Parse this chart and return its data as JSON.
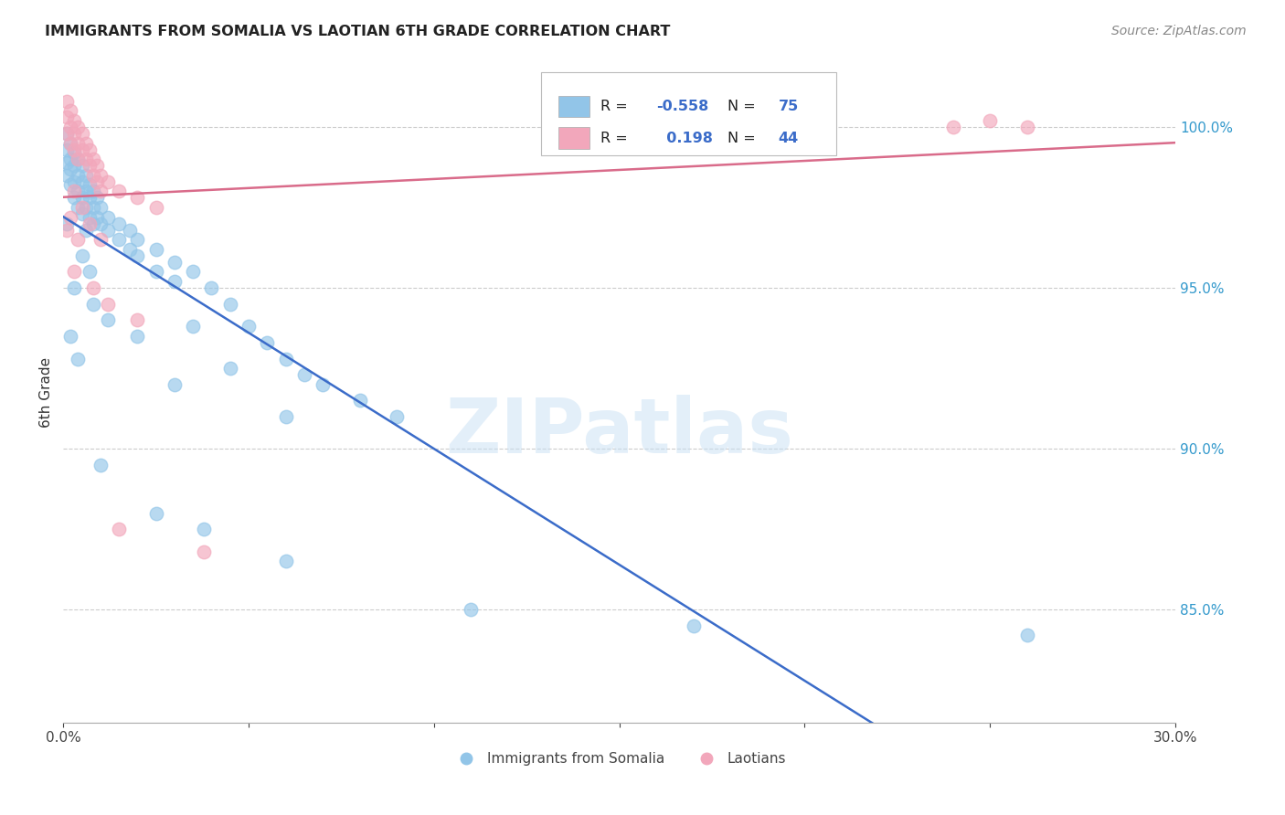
{
  "title": "IMMIGRANTS FROM SOMALIA VS LAOTIAN 6TH GRADE CORRELATION CHART",
  "source": "Source: ZipAtlas.com",
  "ylabel": "6th Grade",
  "x_min": 0.0,
  "x_max": 0.3,
  "y_min": 81.5,
  "y_max": 102.0,
  "blue_color": "#92C5E8",
  "pink_color": "#F2A7BB",
  "trendline_blue": "#3B6CC9",
  "trendline_pink": "#D96B8A",
  "watermark": "ZIPatlas",
  "background_color": "#FFFFFF",
  "grid_color": "#CCCCCC",
  "blue_scatter": [
    [
      0.001,
      99.8
    ],
    [
      0.001,
      99.3
    ],
    [
      0.001,
      98.9
    ],
    [
      0.001,
      98.5
    ],
    [
      0.002,
      99.5
    ],
    [
      0.002,
      99.0
    ],
    [
      0.002,
      98.7
    ],
    [
      0.002,
      98.2
    ],
    [
      0.003,
      99.2
    ],
    [
      0.003,
      98.8
    ],
    [
      0.003,
      98.3
    ],
    [
      0.003,
      97.8
    ],
    [
      0.004,
      99.0
    ],
    [
      0.004,
      98.5
    ],
    [
      0.004,
      98.0
    ],
    [
      0.004,
      97.5
    ],
    [
      0.005,
      98.8
    ],
    [
      0.005,
      98.3
    ],
    [
      0.005,
      97.8
    ],
    [
      0.005,
      97.3
    ],
    [
      0.006,
      98.5
    ],
    [
      0.006,
      98.0
    ],
    [
      0.006,
      97.5
    ],
    [
      0.007,
      98.2
    ],
    [
      0.007,
      97.8
    ],
    [
      0.007,
      97.2
    ],
    [
      0.008,
      98.0
    ],
    [
      0.008,
      97.5
    ],
    [
      0.008,
      97.0
    ],
    [
      0.009,
      97.8
    ],
    [
      0.009,
      97.2
    ],
    [
      0.01,
      97.5
    ],
    [
      0.01,
      97.0
    ],
    [
      0.012,
      97.2
    ],
    [
      0.012,
      96.8
    ],
    [
      0.015,
      97.0
    ],
    [
      0.015,
      96.5
    ],
    [
      0.018,
      96.8
    ],
    [
      0.018,
      96.2
    ],
    [
      0.02,
      96.5
    ],
    [
      0.02,
      96.0
    ],
    [
      0.025,
      96.2
    ],
    [
      0.025,
      95.5
    ],
    [
      0.03,
      95.8
    ],
    [
      0.03,
      95.2
    ],
    [
      0.035,
      95.5
    ],
    [
      0.04,
      95.0
    ],
    [
      0.045,
      94.5
    ],
    [
      0.05,
      93.8
    ],
    [
      0.055,
      93.3
    ],
    [
      0.06,
      92.8
    ],
    [
      0.065,
      92.3
    ],
    [
      0.07,
      92.0
    ],
    [
      0.08,
      91.5
    ],
    [
      0.09,
      91.0
    ],
    [
      0.035,
      93.8
    ],
    [
      0.045,
      92.5
    ],
    [
      0.06,
      91.0
    ],
    [
      0.01,
      89.5
    ],
    [
      0.025,
      88.0
    ],
    [
      0.038,
      87.5
    ],
    [
      0.06,
      86.5
    ],
    [
      0.11,
      85.0
    ],
    [
      0.17,
      84.5
    ],
    [
      0.005,
      96.0
    ],
    [
      0.007,
      95.5
    ],
    [
      0.003,
      95.0
    ],
    [
      0.008,
      94.5
    ],
    [
      0.012,
      94.0
    ],
    [
      0.02,
      93.5
    ],
    [
      0.03,
      92.0
    ],
    [
      0.002,
      93.5
    ],
    [
      0.004,
      92.8
    ],
    [
      0.26,
      84.2
    ],
    [
      0.001,
      97.0
    ],
    [
      0.006,
      96.8
    ]
  ],
  "pink_scatter": [
    [
      0.001,
      100.8
    ],
    [
      0.001,
      100.3
    ],
    [
      0.001,
      99.8
    ],
    [
      0.002,
      100.5
    ],
    [
      0.002,
      100.0
    ],
    [
      0.002,
      99.5
    ],
    [
      0.003,
      100.2
    ],
    [
      0.003,
      99.8
    ],
    [
      0.003,
      99.3
    ],
    [
      0.004,
      100.0
    ],
    [
      0.004,
      99.5
    ],
    [
      0.004,
      99.0
    ],
    [
      0.005,
      99.8
    ],
    [
      0.005,
      99.3
    ],
    [
      0.006,
      99.5
    ],
    [
      0.006,
      99.0
    ],
    [
      0.007,
      99.3
    ],
    [
      0.007,
      98.8
    ],
    [
      0.008,
      99.0
    ],
    [
      0.008,
      98.5
    ],
    [
      0.009,
      98.8
    ],
    [
      0.009,
      98.3
    ],
    [
      0.01,
      98.5
    ],
    [
      0.01,
      98.0
    ],
    [
      0.012,
      98.3
    ],
    [
      0.015,
      98.0
    ],
    [
      0.02,
      97.8
    ],
    [
      0.025,
      97.5
    ],
    [
      0.003,
      98.0
    ],
    [
      0.005,
      97.5
    ],
    [
      0.007,
      97.0
    ],
    [
      0.01,
      96.5
    ],
    [
      0.002,
      97.2
    ],
    [
      0.001,
      96.8
    ],
    [
      0.004,
      96.5
    ],
    [
      0.015,
      87.5
    ],
    [
      0.038,
      86.8
    ],
    [
      0.24,
      100.0
    ],
    [
      0.25,
      100.2
    ],
    [
      0.26,
      100.0
    ],
    [
      0.003,
      95.5
    ],
    [
      0.008,
      95.0
    ],
    [
      0.012,
      94.5
    ],
    [
      0.02,
      94.0
    ]
  ]
}
